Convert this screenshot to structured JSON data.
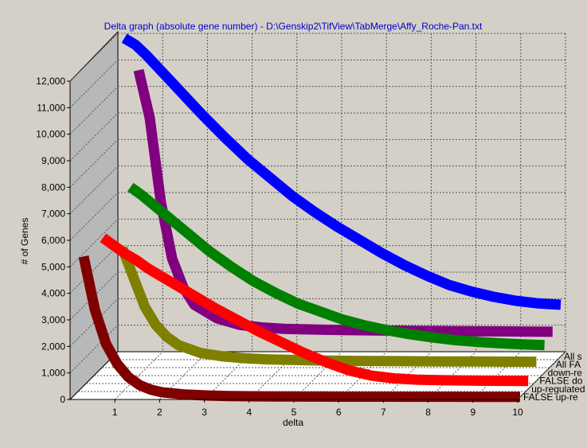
{
  "chart_data": {
    "type": "line",
    "title": "Delta graph (absolute gene number) - D:\\Genskip2\\TifView\\TabMerge\\Affy_Roche-Pan.txt",
    "xlabel": "delta",
    "ylabel": "# of Genes",
    "x": [
      0.25,
      0.5,
      0.75,
      1,
      1.25,
      1.5,
      1.75,
      2,
      2.5,
      3,
      3.5,
      4,
      4.5,
      5,
      5.5,
      6,
      6.5,
      7,
      7.5,
      8,
      8.5,
      9,
      9.5,
      10
    ],
    "xlim": [
      0,
      10
    ],
    "ylim": [
      0,
      12000
    ],
    "x_ticks": [
      "1",
      "2",
      "3",
      "4",
      "5",
      "6",
      "7",
      "8",
      "9",
      "10"
    ],
    "y_ticks": [
      "0",
      "1,000",
      "2,000",
      "3,000",
      "4,000",
      "5,000",
      "6,000",
      "7,000",
      "8,000",
      "9,000",
      "10,000",
      "11,000",
      "12,000"
    ],
    "grid": true,
    "legend_position": "right",
    "series": [
      {
        "name": "All s",
        "color": "#0000ff",
        "values": [
          12000,
          11750,
          11350,
          10900,
          10450,
          10000,
          9550,
          9100,
          8250,
          7450,
          6750,
          6050,
          5450,
          4900,
          4400,
          3900,
          3450,
          3050,
          2700,
          2450,
          2250,
          2100,
          2000,
          1950
        ]
      },
      {
        "name": "All FA",
        "color": "#800080",
        "values": [
          null,
          null,
          11100,
          9300,
          6100,
          4000,
          2900,
          2250,
          1750,
          1500,
          1400,
          1350,
          1330,
          1310,
          1300,
          1290,
          1280,
          1270,
          1265,
          1260,
          1255,
          1250,
          1245,
          1240
        ]
      },
      {
        "name": "down-re",
        "color": "#008000",
        "values": [
          null,
          null,
          7000,
          6700,
          6350,
          6000,
          5650,
          5300,
          4600,
          4000,
          3450,
          3000,
          2600,
          2300,
          2000,
          1780,
          1600,
          1450,
          1330,
          1230,
          1160,
          1110,
          1070,
          1040
        ]
      },
      {
        "name": "FALSE do",
        "color": "#808000",
        "values": [
          null,
          null,
          5000,
          3900,
          2800,
          2100,
          1650,
          1350,
          1050,
          920,
          850,
          810,
          790,
          770,
          760,
          750,
          745,
          740,
          735,
          730,
          728,
          725,
          722,
          720
        ]
      },
      {
        "name": "up-regulated",
        "color": "#ff0000",
        "values": [
          null,
          5700,
          5400,
          5100,
          4850,
          4550,
          4300,
          4050,
          3550,
          3050,
          2600,
          2150,
          1750,
          1350,
          1000,
          700,
          500,
          400,
          350,
          330,
          320,
          310,
          305,
          300
        ]
      },
      {
        "name": "FALSE up-re",
        "color": "#800000",
        "values": [
          5300,
          3300,
          2000,
          1250,
          750,
          450,
          280,
          180,
          100,
          60,
          40,
          30,
          25,
          20,
          18,
          16,
          15,
          14,
          13,
          12,
          11,
          10,
          10,
          10
        ]
      }
    ]
  }
}
